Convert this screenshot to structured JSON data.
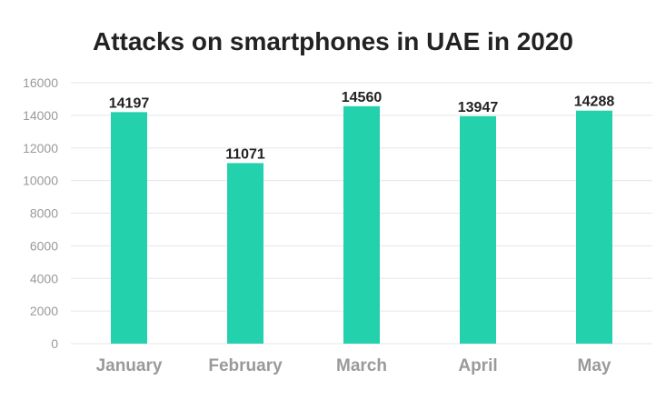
{
  "chart_data": {
    "type": "bar",
    "title": "Attacks on smartphones in UAE in 2020",
    "categories": [
      "January",
      "February",
      "March",
      "April",
      "May"
    ],
    "values": [
      14197,
      11071,
      14560,
      13947,
      14288
    ],
    "data_labels": [
      "14197",
      "11071",
      "14560",
      "13947",
      "14288"
    ],
    "y_ticks": [
      "0",
      "2000",
      "4000",
      "6000",
      "8000",
      "10000",
      "12000",
      "14000",
      "16000"
    ],
    "ylim": [
      0,
      16000
    ],
    "grid": true,
    "legend": "none",
    "colors": {
      "bar": "#23d1ad"
    }
  }
}
